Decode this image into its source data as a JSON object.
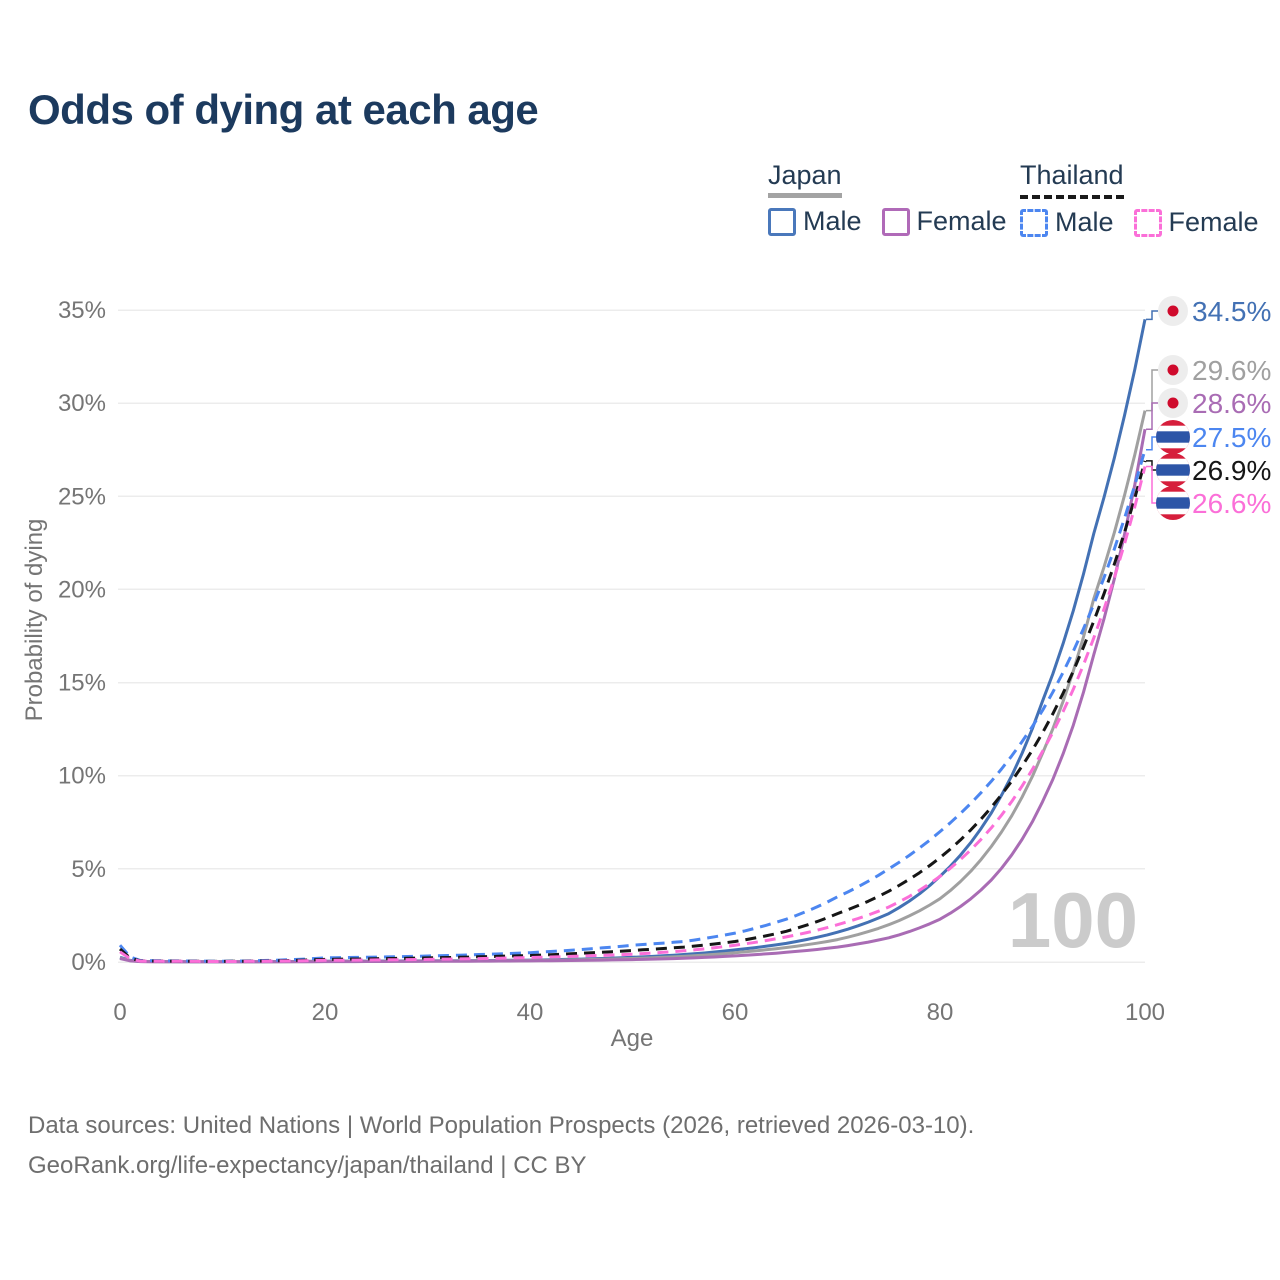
{
  "title": "Odds of dying at each age",
  "watermark": "100",
  "legend": {
    "japan_label": "Japan",
    "thailand_label": "Thailand",
    "japan_male": "Male",
    "japan_female": "Female",
    "thailand_male": "Male",
    "thailand_female": "Female",
    "japan_underline_color": "#a3a3a3",
    "thailand_underline_color": "#1a1a1a",
    "japan_male_color": "#4a78bb",
    "japan_female_color": "#b06ab8",
    "thailand_male_color": "#4c86f0",
    "thailand_female_color": "#fb6fd8"
  },
  "footer": {
    "line1": "Data sources: United Nations | World Population Prospects (2026, retrieved 2026-03-10).",
    "line2": "GeoRank.org/life-expectancy/japan/thailand | CC BY"
  },
  "colors": {
    "title_text": "#1c3a5e",
    "legend_text": "#243b53",
    "axis_text": "#757575",
    "grid": "#ececec",
    "watermark": "#cbcbcb",
    "footer_text": "#6e6e6e"
  },
  "chart_data": {
    "type": "line",
    "title": "Odds of dying at each age",
    "xlabel": "Age",
    "ylabel": "Probability of dying",
    "xlim": [
      0,
      100
    ],
    "ylim": [
      0,
      35
    ],
    "x_ticks": [
      0,
      20,
      40,
      60,
      80,
      100
    ],
    "y_ticks": [
      0,
      5,
      10,
      15,
      20,
      25,
      30,
      35
    ],
    "y_tick_suffix": "%",
    "grid": "horizontal",
    "legend_position": "top-right",
    "x": [
      0,
      2,
      10,
      20,
      30,
      40,
      50,
      55,
      60,
      65,
      70,
      75,
      80,
      85,
      90,
      95,
      100
    ],
    "series": [
      {
        "id": "japan-male",
        "name": "Japan Male",
        "flag": "japan",
        "color": "#4371b4",
        "dash": "solid",
        "end_label": "34.5%",
        "end_value": 34.5,
        "values": [
          0.25,
          0.03,
          0.01,
          0.045,
          0.06,
          0.1,
          0.25,
          0.4,
          0.65,
          1.0,
          1.6,
          2.6,
          4.6,
          8.0,
          14.0,
          23.0,
          34.5
        ]
      },
      {
        "id": "japan-both",
        "name": "Japan (both sexes)",
        "flag": "japan",
        "color": "#a0a0a0",
        "dash": "solid",
        "end_label": "29.6%",
        "end_value": 29.6,
        "values": [
          0.22,
          0.025,
          0.009,
          0.03,
          0.05,
          0.08,
          0.19,
          0.3,
          0.5,
          0.78,
          1.2,
          2.0,
          3.4,
          6.2,
          11.2,
          19.5,
          29.6
        ]
      },
      {
        "id": "japan-female",
        "name": "Japan Female",
        "flag": "japan",
        "color": "#a96cb4",
        "dash": "solid",
        "end_label": "28.6%",
        "end_value": 28.6,
        "values": [
          0.19,
          0.02,
          0.008,
          0.02,
          0.035,
          0.06,
          0.13,
          0.2,
          0.33,
          0.52,
          0.8,
          1.3,
          2.3,
          4.4,
          8.6,
          16.5,
          28.6
        ]
      },
      {
        "id": "thailand-male",
        "name": "Thailand Male",
        "flag": "thailand",
        "color": "#4c86f0",
        "dash": "dashed",
        "end_label": "27.5%",
        "end_value": 27.5,
        "values": [
          0.9,
          0.08,
          0.04,
          0.22,
          0.32,
          0.5,
          0.9,
          1.1,
          1.55,
          2.3,
          3.5,
          5.0,
          7.0,
          9.7,
          13.5,
          19.2,
          27.5
        ]
      },
      {
        "id": "thailand-both",
        "name": "Thailand (both sexes)",
        "flag": "thailand",
        "color": "#161616",
        "dash": "dashed",
        "end_label": "26.9%",
        "end_value": 26.9,
        "values": [
          0.7,
          0.06,
          0.03,
          0.14,
          0.22,
          0.35,
          0.62,
          0.8,
          1.1,
          1.65,
          2.6,
          3.8,
          5.6,
          8.3,
          12.3,
          18.3,
          26.9
        ]
      },
      {
        "id": "thailand-female",
        "name": "Thailand Female",
        "flag": "thailand",
        "color": "#fb6fd8",
        "dash": "dashed",
        "end_label": "26.6%",
        "end_value": 26.6,
        "values": [
          0.55,
          0.05,
          0.025,
          0.09,
          0.14,
          0.24,
          0.42,
          0.6,
          0.9,
          1.35,
          2.0,
          2.95,
          4.6,
          7.2,
          11.3,
          17.4,
          26.6
        ]
      }
    ],
    "flags": {
      "japan": {
        "bg": "#ededed",
        "dot": "#cf0a2c"
      },
      "thailand": {
        "red": "#d61e3c",
        "white": "#ffffff",
        "blue": "#2d55a7"
      }
    }
  }
}
